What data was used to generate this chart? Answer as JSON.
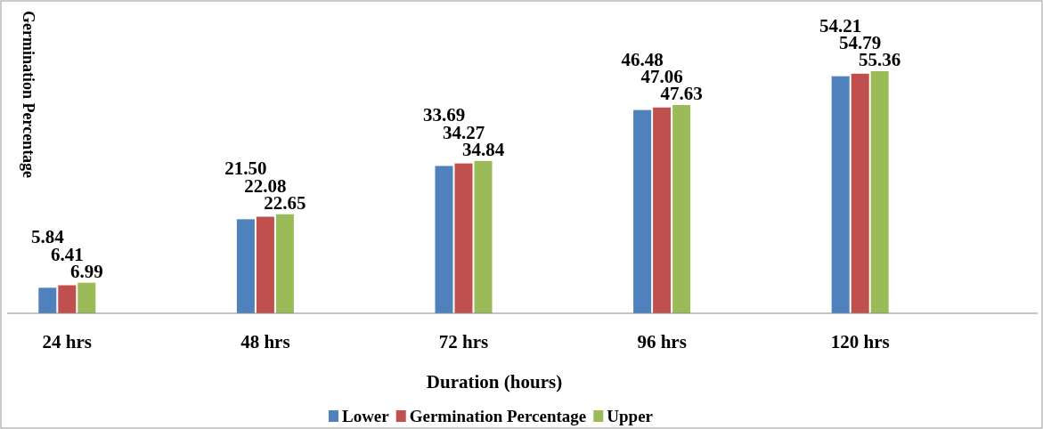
{
  "chart_data": {
    "type": "bar",
    "ylabel": "Germination Percentage",
    "xlabel": "Duration (hours)",
    "categories": [
      "24 hrs",
      "48 hrs",
      "72 hrs",
      "96 hrs",
      "120 hrs"
    ],
    "series": [
      {
        "name": "Lower",
        "color": "#4f81bd",
        "values": [
          5.84,
          21.5,
          33.69,
          46.48,
          54.21
        ],
        "value_labels": [
          "5.84",
          "21.50",
          "33.69",
          "46.48",
          "54.21"
        ]
      },
      {
        "name": "Germination Percentage",
        "color": "#c0504d",
        "values": [
          6.41,
          22.08,
          34.27,
          47.06,
          54.79
        ],
        "value_labels": [
          "6.41",
          "22.08",
          "34.27",
          "47.06",
          "54.79"
        ]
      },
      {
        "name": "Upper",
        "color": "#9bbb59",
        "values": [
          6.99,
          22.65,
          34.84,
          47.63,
          55.36
        ],
        "value_labels": [
          "6.99",
          "22.65",
          "34.84",
          "47.63",
          "55.36"
        ]
      }
    ],
    "legend": "bottom",
    "tick_labels": "x"
  }
}
